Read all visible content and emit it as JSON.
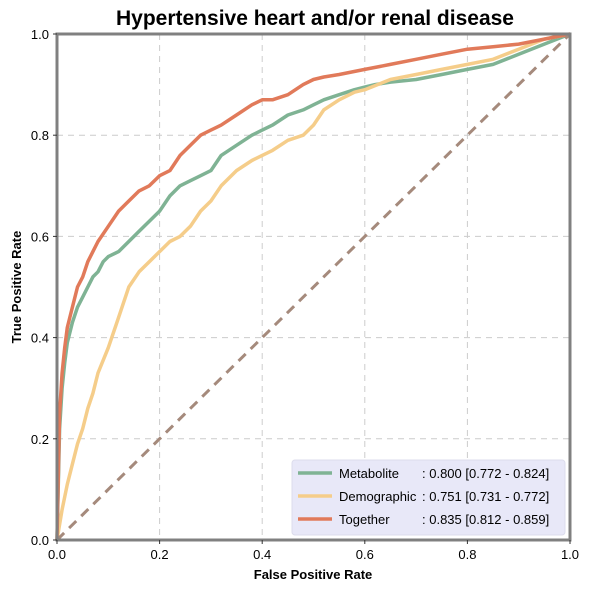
{
  "chart_data": {
    "type": "line",
    "title": "Hypertensive heart and/or renal disease",
    "xlabel": "False Positive Rate",
    "ylabel": "True Positive Rate",
    "xlim": [
      0,
      1
    ],
    "ylim": [
      0,
      1
    ],
    "xticks": [
      "0.0",
      "0.2",
      "0.4",
      "0.6",
      "0.8",
      "1.0"
    ],
    "yticks": [
      "0.0",
      "0.2",
      "0.4",
      "0.6",
      "0.8",
      "1.0"
    ],
    "grid": true,
    "legend_position": "bottom-right",
    "legend_bg": "#e8e8f8",
    "series": [
      {
        "name": "Metabolite",
        "label": ": 0.800 [0.772 - 0.824]",
        "color": "#7fb394",
        "x": [
          0,
          0.005,
          0.01,
          0.015,
          0.02,
          0.03,
          0.04,
          0.05,
          0.06,
          0.07,
          0.08,
          0.09,
          0.1,
          0.12,
          0.14,
          0.16,
          0.18,
          0.2,
          0.22,
          0.24,
          0.26,
          0.28,
          0.3,
          0.32,
          0.35,
          0.38,
          0.4,
          0.42,
          0.45,
          0.48,
          0.5,
          0.52,
          0.55,
          0.58,
          0.6,
          0.62,
          0.65,
          0.7,
          0.75,
          0.8,
          0.85,
          0.9,
          0.95,
          1.0
        ],
        "y": [
          0,
          0.22,
          0.3,
          0.35,
          0.39,
          0.43,
          0.46,
          0.48,
          0.5,
          0.52,
          0.53,
          0.55,
          0.56,
          0.57,
          0.59,
          0.61,
          0.63,
          0.65,
          0.68,
          0.7,
          0.71,
          0.72,
          0.73,
          0.76,
          0.78,
          0.8,
          0.81,
          0.82,
          0.84,
          0.85,
          0.86,
          0.87,
          0.88,
          0.89,
          0.895,
          0.9,
          0.905,
          0.91,
          0.92,
          0.93,
          0.94,
          0.96,
          0.98,
          1.0
        ]
      },
      {
        "name": "Demographic",
        "label": ": 0.751 [0.731 - 0.772]",
        "color": "#f5cd8a",
        "x": [
          0,
          0.01,
          0.02,
          0.03,
          0.04,
          0.05,
          0.06,
          0.07,
          0.08,
          0.1,
          0.12,
          0.14,
          0.16,
          0.18,
          0.2,
          0.22,
          0.24,
          0.26,
          0.28,
          0.3,
          0.32,
          0.35,
          0.38,
          0.4,
          0.42,
          0.45,
          0.48,
          0.5,
          0.52,
          0.55,
          0.58,
          0.6,
          0.65,
          0.7,
          0.75,
          0.8,
          0.85,
          0.9,
          0.95,
          1.0
        ],
        "y": [
          0,
          0.06,
          0.11,
          0.15,
          0.19,
          0.22,
          0.26,
          0.29,
          0.33,
          0.38,
          0.44,
          0.5,
          0.53,
          0.55,
          0.57,
          0.59,
          0.6,
          0.62,
          0.65,
          0.67,
          0.7,
          0.73,
          0.75,
          0.76,
          0.77,
          0.79,
          0.8,
          0.82,
          0.85,
          0.87,
          0.885,
          0.89,
          0.91,
          0.92,
          0.93,
          0.94,
          0.95,
          0.97,
          0.99,
          1.0
        ]
      },
      {
        "name": "Together",
        "label": ": 0.835 [0.812 - 0.859]",
        "color": "#e17a5a",
        "x": [
          0,
          0.005,
          0.01,
          0.015,
          0.02,
          0.03,
          0.04,
          0.05,
          0.06,
          0.07,
          0.08,
          0.1,
          0.12,
          0.14,
          0.16,
          0.18,
          0.2,
          0.22,
          0.24,
          0.26,
          0.28,
          0.3,
          0.32,
          0.35,
          0.38,
          0.4,
          0.42,
          0.45,
          0.48,
          0.5,
          0.52,
          0.55,
          0.6,
          0.65,
          0.7,
          0.75,
          0.8,
          0.85,
          0.9,
          0.95,
          1.0
        ],
        "y": [
          0,
          0.25,
          0.33,
          0.38,
          0.42,
          0.46,
          0.5,
          0.52,
          0.55,
          0.57,
          0.59,
          0.62,
          0.65,
          0.67,
          0.69,
          0.7,
          0.72,
          0.73,
          0.76,
          0.78,
          0.8,
          0.81,
          0.82,
          0.84,
          0.86,
          0.87,
          0.87,
          0.88,
          0.9,
          0.91,
          0.915,
          0.92,
          0.93,
          0.94,
          0.95,
          0.96,
          0.97,
          0.975,
          0.98,
          0.99,
          1.0
        ]
      },
      {
        "name": "",
        "role": "chance-line",
        "color": "#a58a7c",
        "x": [
          0,
          1
        ],
        "y": [
          0,
          1
        ]
      }
    ]
  }
}
